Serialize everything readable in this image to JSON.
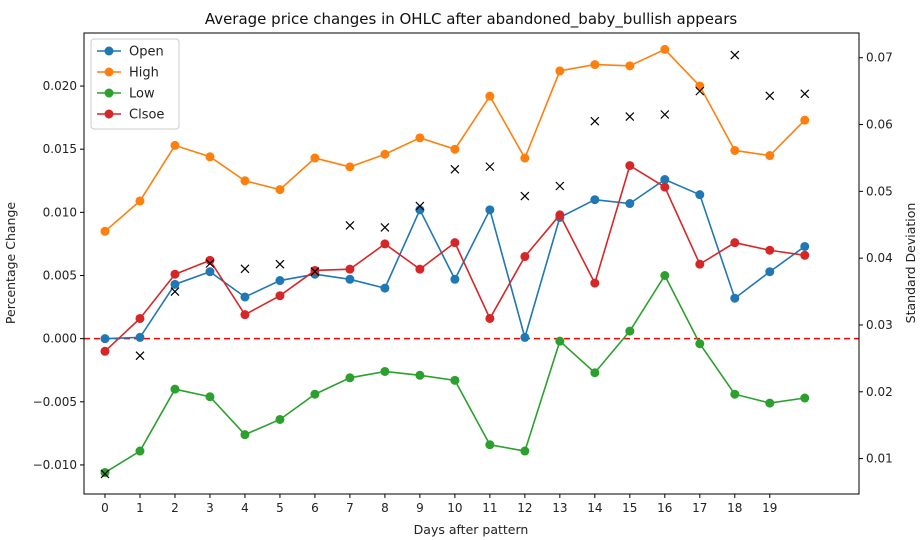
{
  "chart_data": {
    "type": "line",
    "title": "Average price changes in OHLC after abandoned_baby_bullish appears",
    "xlabel": "Days after pattern",
    "ylabel": "Percentage Change",
    "ylabel_right": "Standard Deviation",
    "x": [
      0,
      1,
      2,
      3,
      4,
      5,
      6,
      7,
      8,
      9,
      10,
      11,
      12,
      13,
      14,
      15,
      16,
      17,
      18,
      19,
      20
    ],
    "x_tick_labels": [
      "0",
      "1",
      "2",
      "3",
      "4",
      "5",
      "6",
      "7",
      "8",
      "9",
      "10",
      "11",
      "12",
      "13",
      "14",
      "15",
      "16",
      "17",
      "18",
      "19"
    ],
    "ylim": [
      -0.0123,
      0.0242
    ],
    "y_ticks": [
      -0.01,
      -0.005,
      0.0,
      0.005,
      0.01,
      0.015,
      0.02
    ],
    "y_tick_labels": [
      "−0.010",
      "−0.005",
      "0.000",
      "0.005",
      "0.010",
      "0.015",
      "0.020"
    ],
    "ylim_right": [
      0.0047,
      0.0737
    ],
    "y_ticks_right": [
      0.01,
      0.02,
      0.03,
      0.04,
      0.05,
      0.06,
      0.07
    ],
    "y_tick_labels_right": [
      "0.01",
      "0.02",
      "0.03",
      "0.04",
      "0.05",
      "0.06",
      "0.07"
    ],
    "legend_position": "top-left",
    "reference_line": {
      "y": 0.0,
      "color": "#ff0000",
      "style": "dashed"
    },
    "series": [
      {
        "name": "Open",
        "color": "#1f77b4",
        "values": [
          0.0,
          0.0001,
          0.0043,
          0.0053,
          0.0033,
          0.0046,
          0.0051,
          0.0047,
          0.004,
          0.0102,
          0.0047,
          0.0102,
          0.0001,
          0.0096,
          0.011,
          0.0107,
          0.0126,
          0.0114,
          0.0032,
          0.0053,
          0.0073
        ]
      },
      {
        "name": "High",
        "color": "#ff7f0e",
        "values": [
          0.0085,
          0.0109,
          0.0153,
          0.0144,
          0.0125,
          0.0118,
          0.0143,
          0.0136,
          0.0146,
          0.0159,
          0.015,
          0.0192,
          0.0143,
          0.0212,
          0.0217,
          0.0216,
          0.0229,
          0.02,
          0.0149,
          0.0145,
          0.0173
        ]
      },
      {
        "name": "Low",
        "color": "#2ca02c",
        "values": [
          -0.0106,
          -0.0089,
          -0.004,
          -0.0046,
          -0.0076,
          -0.0064,
          -0.0044,
          -0.0031,
          -0.0026,
          -0.0029,
          -0.0033,
          -0.0084,
          -0.0089,
          -0.0002,
          -0.0027,
          0.0006,
          0.005,
          -0.0004,
          -0.0044,
          -0.0051,
          -0.0047
        ]
      },
      {
        "name": "Clsoe",
        "color": "#d62728",
        "values": [
          -0.001,
          0.0016,
          0.0051,
          0.0062,
          0.0019,
          0.0034,
          0.0054,
          0.0055,
          0.0075,
          0.0055,
          0.0076,
          0.0016,
          0.0065,
          0.0098,
          0.0044,
          0.0137,
          0.012,
          0.0059,
          0.0076,
          0.007,
          0.0066
        ]
      }
    ],
    "std_series": {
      "axis": "right",
      "marker": "x",
      "color": "#000000",
      "values": [
        0.0077,
        0.0254,
        0.035,
        0.0392,
        0.0384,
        0.0391,
        0.038,
        0.0449,
        0.0446,
        0.0478,
        0.0533,
        0.0537,
        0.0493,
        0.0508,
        0.0605,
        0.0612,
        0.0615,
        0.065,
        0.0704,
        0.0643,
        0.0646
      ]
    }
  }
}
